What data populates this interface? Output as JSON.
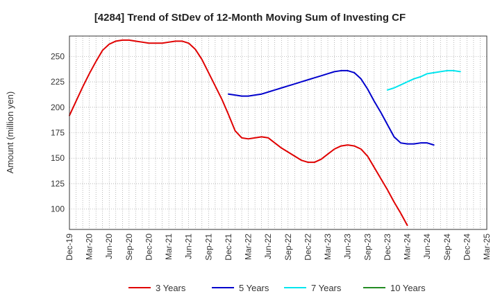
{
  "chart_data": {
    "type": "line",
    "title": "[4284]  Trend of StDev of 12-Month Moving Sum of Investing CF",
    "ylabel": "Amount (million yen)",
    "xlabel": "",
    "ylim": [
      80,
      270
    ],
    "yticks": [
      100,
      125,
      150,
      175,
      200,
      225,
      250
    ],
    "x_tick_labels": [
      "Dec-19",
      "Mar-20",
      "Jun-20",
      "Sep-20",
      "Dec-20",
      "Mar-21",
      "Jun-21",
      "Sep-21",
      "Dec-21",
      "Mar-22",
      "Jun-22",
      "Sep-22",
      "Dec-22",
      "Mar-23",
      "Jun-23",
      "Sep-23",
      "Dec-23",
      "Mar-24",
      "Jun-24",
      "Sep-24",
      "Dec-24",
      "Mar-25"
    ],
    "grid": true,
    "legend_position": "bottom",
    "series": [
      {
        "name": "3 Years",
        "color": "#e00000",
        "start_index": 0,
        "values": [
          192,
          206,
          220,
          233,
          245,
          256,
          262,
          265,
          266,
          266,
          265,
          264,
          263,
          263,
          263,
          264,
          265,
          265,
          263,
          257,
          247,
          234,
          221,
          208,
          193,
          177,
          170,
          169,
          170,
          171,
          170,
          165,
          160,
          156,
          152,
          148,
          146,
          146,
          149,
          154,
          159,
          162,
          163,
          162,
          159,
          152,
          141,
          130,
          119,
          107,
          96,
          84
        ]
      },
      {
        "name": "5 Years",
        "color": "#0000cc",
        "start_index": 24,
        "values": [
          213,
          212,
          211,
          211,
          212,
          213,
          215,
          217,
          219,
          221,
          223,
          225,
          227,
          229,
          231,
          233,
          235,
          236,
          236,
          234,
          228,
          218,
          206,
          195,
          183,
          171,
          165,
          164,
          164,
          165,
          165,
          163
        ]
      },
      {
        "name": "7 Years",
        "color": "#00e5ee",
        "start_index": 48,
        "values": [
          217,
          219,
          222,
          225,
          228,
          230,
          233,
          234,
          235,
          236,
          236,
          235
        ]
      },
      {
        "name": "10 Years",
        "color": "#228b22",
        "start_index": 0,
        "values": []
      }
    ]
  }
}
